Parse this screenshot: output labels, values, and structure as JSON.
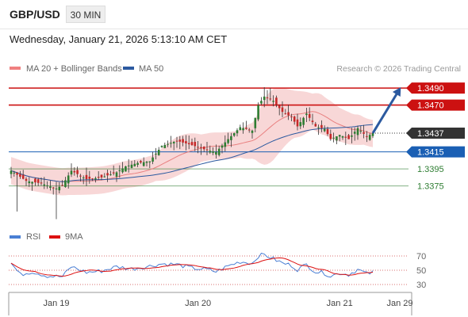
{
  "header": {
    "symbol": "GBP/USD",
    "timeframe": "30 MIN",
    "datetime": "Wednesday, January 21, 2026 5:13:10 AM CET"
  },
  "chart_data": [
    {
      "type": "candlestick",
      "legend": [
        {
          "label": "MA 20 + Bollinger Bands",
          "color": "#f08080"
        },
        {
          "label": "MA 50",
          "color": "#2c5aa0"
        }
      ],
      "credit": "Research © 2026 Trading Central",
      "ylim": [
        1.333,
        1.3505
      ],
      "x_ticks": [
        {
          "label": "Jan 19",
          "index": 15
        },
        {
          "label": "Jan 20",
          "index": 62
        },
        {
          "label": "Jan 21",
          "index": 109
        },
        {
          "label": "Jan 29",
          "index": 130
        }
      ],
      "levels": [
        {
          "value": 1.349,
          "label": "1.3490",
          "color": "#cc1111",
          "style": "badge-red"
        },
        {
          "value": 1.347,
          "label": "1.3470",
          "color": "#cc1111",
          "style": "badge-red"
        },
        {
          "value": 1.3437,
          "label": "1.3437",
          "color": "#333333",
          "style": "badge-dark"
        },
        {
          "value": 1.3415,
          "label": "1.3415",
          "color": "#1a5fb4",
          "style": "badge-blue"
        },
        {
          "value": 1.3395,
          "label": "1.3395",
          "color": "#2e7d32",
          "style": "text-green"
        },
        {
          "value": 1.3375,
          "label": "1.3375",
          "color": "#2e7d32",
          "style": "text-green"
        }
      ],
      "close_anchors": [
        [
          0,
          1.3393
        ],
        [
          5,
          1.3381
        ],
        [
          10,
          1.3378
        ],
        [
          15,
          1.3372
        ],
        [
          17,
          1.3376
        ],
        [
          20,
          1.3393
        ],
        [
          25,
          1.3383
        ],
        [
          30,
          1.3385
        ],
        [
          35,
          1.3391
        ],
        [
          38,
          1.3398
        ],
        [
          42,
          1.3402
        ],
        [
          46,
          1.3404
        ],
        [
          50,
          1.3422
        ],
        [
          55,
          1.3428
        ],
        [
          60,
          1.3423
        ],
        [
          65,
          1.3417
        ],
        [
          68,
          1.3415
        ],
        [
          72,
          1.343
        ],
        [
          76,
          1.3444
        ],
        [
          80,
          1.344
        ],
        [
          82,
          1.347
        ],
        [
          84,
          1.348
        ],
        [
          87,
          1.3475
        ],
        [
          90,
          1.3462
        ],
        [
          93,
          1.3456
        ],
        [
          95,
          1.3445
        ],
        [
          98,
          1.346
        ],
        [
          101,
          1.3445
        ],
        [
          104,
          1.3442
        ],
        [
          106,
          1.343
        ],
        [
          109,
          1.3435
        ],
        [
          112,
          1.343
        ],
        [
          115,
          1.3443
        ],
        [
          118,
          1.3433
        ],
        [
          120,
          1.3437
        ]
      ],
      "forecast_arrow": {
        "from": [
          120,
          1.3437
        ],
        "to": [
          129,
          1.349
        ]
      }
    },
    {
      "type": "line",
      "legend": [
        {
          "label": "RSI",
          "color": "#4a7fd4"
        },
        {
          "label": "9MA",
          "color": "#dd1111"
        }
      ],
      "ylim": [
        20,
        80
      ],
      "y_ticks": [
        70,
        50,
        30
      ],
      "rsi_anchors": [
        [
          0,
          60
        ],
        [
          3,
          44
        ],
        [
          7,
          48
        ],
        [
          12,
          42
        ],
        [
          17,
          41
        ],
        [
          20,
          55
        ],
        [
          25,
          47
        ],
        [
          30,
          49
        ],
        [
          35,
          55
        ],
        [
          40,
          52
        ],
        [
          45,
          55
        ],
        [
          50,
          59
        ],
        [
          55,
          58
        ],
        [
          60,
          53
        ],
        [
          65,
          51
        ],
        [
          68,
          48
        ],
        [
          72,
          56
        ],
        [
          76,
          62
        ],
        [
          80,
          60
        ],
        [
          82,
          70
        ],
        [
          84,
          72
        ],
        [
          87,
          66
        ],
        [
          90,
          60
        ],
        [
          93,
          57
        ],
        [
          95,
          51
        ],
        [
          98,
          58
        ],
        [
          101,
          48
        ],
        [
          104,
          46
        ],
        [
          106,
          42
        ],
        [
          109,
          46
        ],
        [
          112,
          44
        ],
        [
          115,
          51
        ],
        [
          118,
          45
        ],
        [
          120,
          47
        ]
      ]
    }
  ]
}
